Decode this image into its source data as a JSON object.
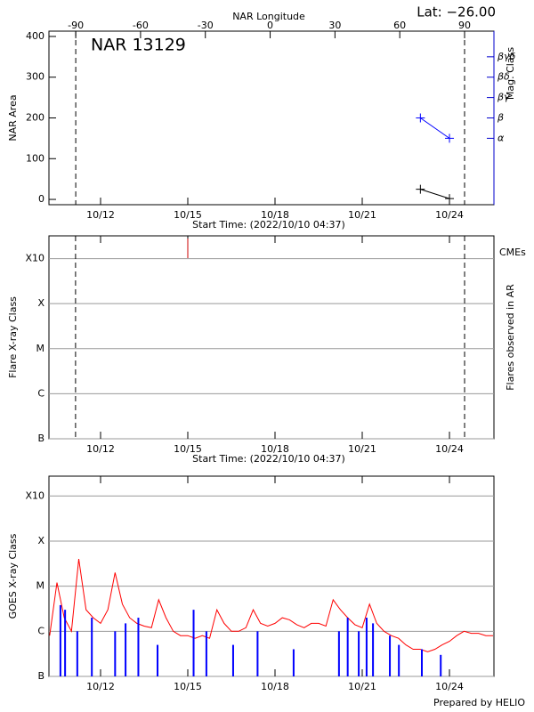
{
  "footer": "Prepared by HELIO",
  "chart_data": [
    {
      "type": "line",
      "title": "NAR 13129",
      "subtitle": "Lat: −26.00",
      "xlabel": "Start Time: (2022/10/10 04:37)",
      "ylabel": "NAR Area",
      "y2label": "Mag. Class",
      "x2label": "NAR Longitude",
      "xlim": [
        10.225,
        25.53
      ],
      "xticks": [
        {
          "value": 12,
          "label": "10/12"
        },
        {
          "value": 15,
          "label": "10/15"
        },
        {
          "value": 18,
          "label": "10/18"
        },
        {
          "value": 21,
          "label": "10/21"
        },
        {
          "value": 24,
          "label": "10/24"
        }
      ],
      "x2lim": [
        -102.4,
        103.6
      ],
      "x2ticks": [
        -90,
        -60,
        -30,
        0,
        30,
        60,
        90
      ],
      "x2markers": [
        -90,
        90
      ],
      "ylim": [
        -13,
        413
      ],
      "yticks": [
        0,
        100,
        200,
        300,
        400
      ],
      "y2lim": [
        -13,
        413
      ],
      "y2ticks": [
        {
          "value": 150,
          "label": "α"
        },
        {
          "value": 200,
          "label": "β"
        },
        {
          "value": 250,
          "label": "βγ"
        },
        {
          "value": 300,
          "label": "βδ"
        },
        {
          "value": 350,
          "label": "βγδ"
        }
      ],
      "y2color": "#0000cc",
      "grid": false,
      "series": [
        {
          "color": "#000000",
          "marker": "plus",
          "x": [
            23.0,
            24.0
          ],
          "values": [
            25,
            2
          ]
        },
        {
          "color": "#0000ff",
          "marker": "plus",
          "axis": "y2",
          "x": [
            23.0,
            24.0
          ],
          "values": [
            200,
            150
          ]
        }
      ]
    },
    {
      "type": "event",
      "xlabel": "Start Time: (2022/10/10 04:37)",
      "ylabel": "Flare X-ray Class",
      "y2label": "Flares observed in AR",
      "xlim": [
        10.225,
        25.53
      ],
      "xticks": [
        {
          "value": 12,
          "label": "10/12"
        },
        {
          "value": 15,
          "label": "10/15"
        },
        {
          "value": 18,
          "label": "10/18"
        },
        {
          "value": 21,
          "label": "10/21"
        },
        {
          "value": 24,
          "label": "10/24"
        }
      ],
      "xmarkers": [
        11.14,
        24.52
      ],
      "log_y": true,
      "grid": true,
      "ylim": [
        1e-07,
        0.0032
      ],
      "yticks": [
        {
          "value": 1e-07,
          "label": "B"
        },
        {
          "value": 1e-06,
          "label": "C"
        },
        {
          "value": 1e-05,
          "label": "M"
        },
        {
          "value": 0.0001,
          "label": "X"
        },
        {
          "value": 0.001,
          "label": "X10"
        }
      ],
      "cme_label": "CMEs",
      "cme_color": "#cc0000",
      "cmes": [
        15.0
      ]
    },
    {
      "type": "line",
      "ylabel": "GOES X-ray Class",
      "xlim": [
        10.225,
        25.53
      ],
      "xticks": [
        {
          "value": 12,
          "label": "10/12"
        },
        {
          "value": 15,
          "label": "10/15"
        },
        {
          "value": 18,
          "label": "10/18"
        },
        {
          "value": 21,
          "label": "10/21"
        },
        {
          "value": 24,
          "label": "10/24"
        }
      ],
      "log_y": true,
      "grid": true,
      "ylim": [
        1e-07,
        0.00275
      ],
      "yticks": [
        {
          "value": 1e-07,
          "label": "B"
        },
        {
          "value": 1e-06,
          "label": "C"
        },
        {
          "value": 1e-05,
          "label": "M"
        },
        {
          "value": 0.0001,
          "label": "X"
        },
        {
          "value": 0.001,
          "label": "X10"
        }
      ],
      "series": [
        {
          "color": "#ff0000",
          "x": [
            10.25,
            10.5,
            10.75,
            11,
            11.25,
            11.5,
            11.75,
            12,
            12.25,
            12.5,
            12.75,
            13,
            13.25,
            13.5,
            13.75,
            14,
            14.25,
            14.5,
            14.75,
            15,
            15.25,
            15.5,
            15.75,
            16,
            16.25,
            16.5,
            16.75,
            17,
            17.25,
            17.5,
            17.75,
            18,
            18.25,
            18.5,
            18.75,
            19,
            19.25,
            19.5,
            19.75,
            20,
            20.25,
            20.5,
            20.75,
            21,
            21.25,
            21.5,
            21.75,
            22,
            22.25,
            22.5,
            22.75,
            23,
            23.25,
            23.5,
            23.75,
            24,
            24.25,
            24.5,
            24.75,
            25,
            25.25,
            25.5
          ],
          "values": [
            8e-07,
            1.2e-05,
            2e-06,
            1e-06,
            4e-05,
            3e-06,
            2e-06,
            1.5e-06,
            3e-06,
            2e-05,
            4e-06,
            2e-06,
            1.5e-06,
            1.3e-06,
            1.2e-06,
            5e-06,
            2e-06,
            1e-06,
            8e-07,
            8e-07,
            7e-07,
            8e-07,
            7e-07,
            3e-06,
            1.5e-06,
            1e-06,
            1e-06,
            1.2e-06,
            3e-06,
            1.5e-06,
            1.3e-06,
            1.5e-06,
            2e-06,
            1.8e-06,
            1.4e-06,
            1.2e-06,
            1.5e-06,
            1.5e-06,
            1.3e-06,
            5e-06,
            3e-06,
            2e-06,
            1.4e-06,
            1.2e-06,
            4e-06,
            1.5e-06,
            1e-06,
            8e-07,
            7e-07,
            5e-07,
            4e-07,
            4e-07,
            3.5e-07,
            4e-07,
            5e-07,
            6e-07,
            8e-07,
            1e-06,
            9e-07,
            9e-07,
            8e-07,
            8e-07
          ]
        },
        {
          "color": "#0000ff",
          "type": "bar",
          "x": [
            10.62,
            10.78,
            11.2,
            11.7,
            12.5,
            12.86,
            13.3,
            13.96,
            15.2,
            15.64,
            16.56,
            17.4,
            18.64,
            20.2,
            20.5,
            20.88,
            21.15,
            21.37,
            21.95,
            22.26,
            23.05,
            23.7
          ],
          "values": [
            3.8e-06,
            3e-06,
            1e-06,
            2e-06,
            1e-06,
            1.5e-06,
            2e-06,
            5e-07,
            3e-06,
            1e-06,
            5e-07,
            1e-06,
            4e-07,
            1e-06,
            2e-06,
            1e-06,
            2e-06,
            1.5e-06,
            8e-07,
            5e-07,
            4e-07,
            3e-07
          ]
        }
      ]
    }
  ]
}
